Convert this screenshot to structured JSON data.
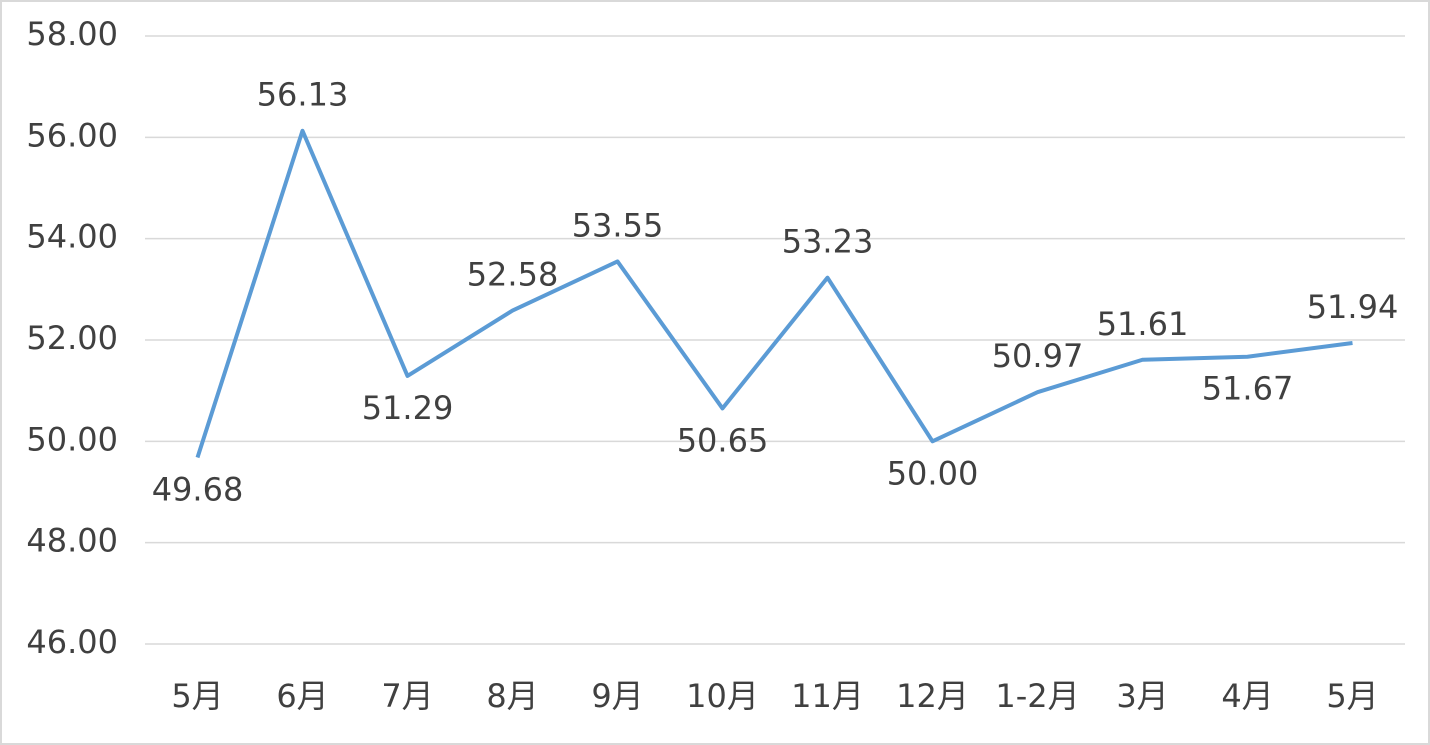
{
  "chart_data": {
    "type": "line",
    "categories": [
      "5月",
      "6月",
      "7月",
      "8月",
      "9月",
      "10月",
      "11月",
      "12月",
      "1-2月",
      "3月",
      "4月",
      "5月"
    ],
    "series": [
      {
        "color": "#5b9bd5",
        "values": [
          49.68,
          56.13,
          51.29,
          52.58,
          53.55,
          50.65,
          53.23,
          50.0,
          50.97,
          51.61,
          51.67,
          51.94
        ],
        "value_labels": [
          "49.68",
          "56.13",
          "51.29",
          "52.58",
          "53.55",
          "50.65",
          "53.23",
          "50.00",
          "50.97",
          "51.61",
          "51.67",
          "51.94"
        ]
      }
    ],
    "ylim": [
      46,
      58
    ],
    "yticks": [
      {
        "value": 46,
        "label": "46.00"
      },
      {
        "value": 48,
        "label": "48.00"
      },
      {
        "value": 50,
        "label": "50.00"
      },
      {
        "value": 52,
        "label": "52.00"
      },
      {
        "value": 54,
        "label": "54.00"
      },
      {
        "value": 56,
        "label": "56.00"
      },
      {
        "value": 58,
        "label": "58.00"
      }
    ],
    "grid": true
  }
}
